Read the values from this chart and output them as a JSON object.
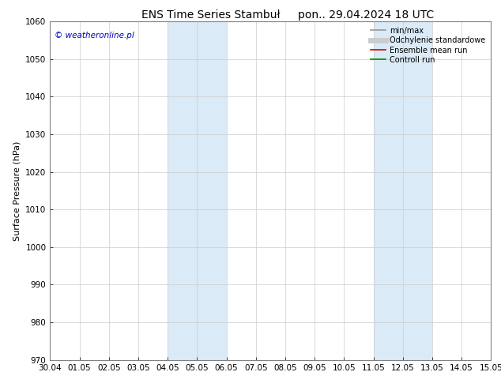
{
  "title_left": "ENS Time Series Stambuł",
  "title_right": "pon.. 29.04.2024 18 UTC",
  "ylabel": "Surface Pressure (hPa)",
  "ylim": [
    970,
    1060
  ],
  "yticks": [
    970,
    980,
    990,
    1000,
    1010,
    1020,
    1030,
    1040,
    1050,
    1060
  ],
  "xtick_labels": [
    "30.04",
    "01.05",
    "02.05",
    "03.05",
    "04.05",
    "05.05",
    "06.05",
    "07.05",
    "08.05",
    "09.05",
    "10.05",
    "11.05",
    "12.05",
    "13.05",
    "14.05",
    "15.05"
  ],
  "xtick_positions": [
    0,
    1,
    2,
    3,
    4,
    5,
    6,
    7,
    8,
    9,
    10,
    11,
    12,
    13,
    14,
    15
  ],
  "shade_bands": [
    {
      "start": 4,
      "end": 6
    },
    {
      "start": 11,
      "end": 13
    }
  ],
  "shade_color": "#daeaf7",
  "watermark_text": "© weatheronline.pl",
  "watermark_color": "#0000bb",
  "legend_entries": [
    {
      "label": "min/max",
      "color": "#999999",
      "lw": 1.2
    },
    {
      "label": "Odchylenie standardowe",
      "color": "#cccccc",
      "lw": 5
    },
    {
      "label": "Ensemble mean run",
      "color": "#dd0000",
      "lw": 1.2
    },
    {
      "label": "Controll run",
      "color": "#008800",
      "lw": 1.2
    }
  ],
  "bg_color": "#ffffff",
  "spine_color": "#808080",
  "grid_color": "#cccccc",
  "title_fontsize": 10,
  "axis_label_fontsize": 8,
  "tick_fontsize": 7.5,
  "legend_fontsize": 7,
  "watermark_fontsize": 7.5
}
